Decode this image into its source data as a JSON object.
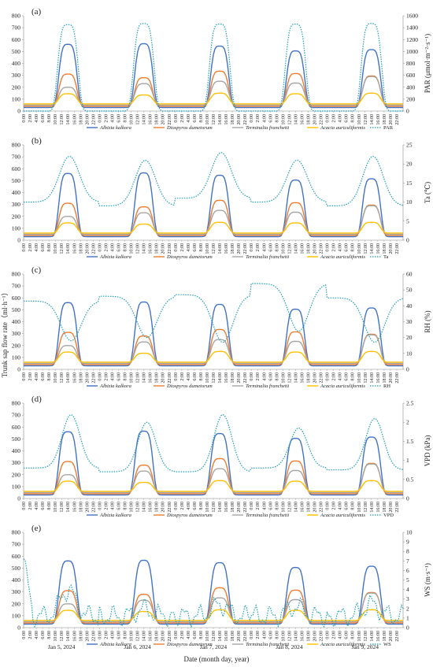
{
  "chart_data": {
    "type": "line",
    "shared_ylabel": "Trunk sap flow rate（ml·h⁻¹）",
    "xlabel": "Date (month day, year)",
    "dates": [
      "Jan 5, 2024",
      "Jan 6, 2024",
      "Jan 7, 2024",
      "Jan 8, 2024",
      "Jan 9, 2024"
    ],
    "hour_ticks": [
      "0:00",
      "2:00",
      "4:00",
      "6:00",
      "8:00",
      "10:00",
      "12:00",
      "14:00",
      "16:00",
      "18:00",
      "20:00",
      "22:00"
    ],
    "series": [
      {
        "name": "Albizia kalkora",
        "color": "#4472C4",
        "style": "solid",
        "peaks": [
          560,
          565,
          545,
          505,
          515
        ],
        "base": 30
      },
      {
        "name": "Diospyros dumetorum",
        "color": "#ED7D31",
        "style": "solid",
        "peaks": [
          310,
          280,
          335,
          315,
          295
        ],
        "base": 40
      },
      {
        "name": "Terminalia franchetii",
        "color": "#A5A5A5",
        "style": "solid",
        "peaks": [
          200,
          230,
          250,
          235,
          290
        ],
        "base": 50
      },
      {
        "name": "Acacia auriculiformis",
        "color": "#FFC000",
        "style": "solid",
        "peaks": [
          145,
          135,
          150,
          145,
          150
        ],
        "base": 60
      }
    ],
    "left_axis": {
      "ylim": [
        0,
        800
      ],
      "ticks": [
        0,
        100,
        200,
        300,
        400,
        500,
        600,
        700,
        800
      ]
    },
    "panels": [
      {
        "label": "(a)",
        "env_name": "PAR",
        "env_color": "#1FA0B8",
        "right_label": "PAR (μmol·m⁻²·s⁻¹)",
        "right_ylim": [
          0,
          1600
        ],
        "right_ticks": [
          0,
          200,
          400,
          600,
          800,
          1000,
          1200,
          1400,
          1600
        ],
        "env_pattern": "par",
        "env_peaks": [
          1450,
          1470,
          1460,
          1460,
          1470
        ]
      },
      {
        "label": "(b)",
        "env_name": "Ta",
        "env_color": "#1FA0B8",
        "right_label": "Ta (℃)",
        "right_ylim": [
          0,
          25
        ],
        "right_ticks": [
          0,
          5,
          10,
          15,
          20,
          25
        ],
        "env_pattern": "ta",
        "env_peaks": [
          22,
          21,
          23,
          21,
          22
        ],
        "env_mins": [
          10,
          9,
          11,
          10,
          9
        ]
      },
      {
        "label": "(c)",
        "env_name": "RH",
        "env_color": "#1FA0B8",
        "right_label": "RH (%)",
        "right_ylim": [
          0,
          60
        ],
        "right_ticks": [
          0,
          10,
          20,
          30,
          40,
          50,
          60
        ],
        "env_pattern": "rh",
        "env_peaks": [
          43,
          46,
          47,
          54,
          45
        ],
        "env_mins": [
          18,
          20,
          17,
          24,
          17
        ]
      },
      {
        "label": "(d)",
        "env_name": "VPD",
        "env_color": "#1FA0B8",
        "right_label": "VPD (kPa)",
        "right_ylim": [
          0,
          2.5
        ],
        "right_ticks": [
          0,
          0.5,
          1,
          1.5,
          2,
          2.5
        ],
        "env_pattern": "vpd",
        "env_peaks": [
          2.2,
          2.0,
          2.2,
          1.85,
          2.1
        ],
        "env_mins": [
          0.8,
          0.7,
          0.7,
          0.8,
          0.75
        ]
      },
      {
        "label": "(e)",
        "env_name": "WS",
        "env_color": "#1FA0B8",
        "right_label": "WS (m·s⁻¹)",
        "right_ylim": [
          0,
          10
        ],
        "right_ticks": [
          0,
          1,
          2,
          3,
          4,
          5,
          6,
          7,
          8,
          9,
          10
        ],
        "env_pattern": "ws",
        "env_peaks": [
          7,
          3,
          4,
          3.5,
          4
        ]
      }
    ]
  }
}
